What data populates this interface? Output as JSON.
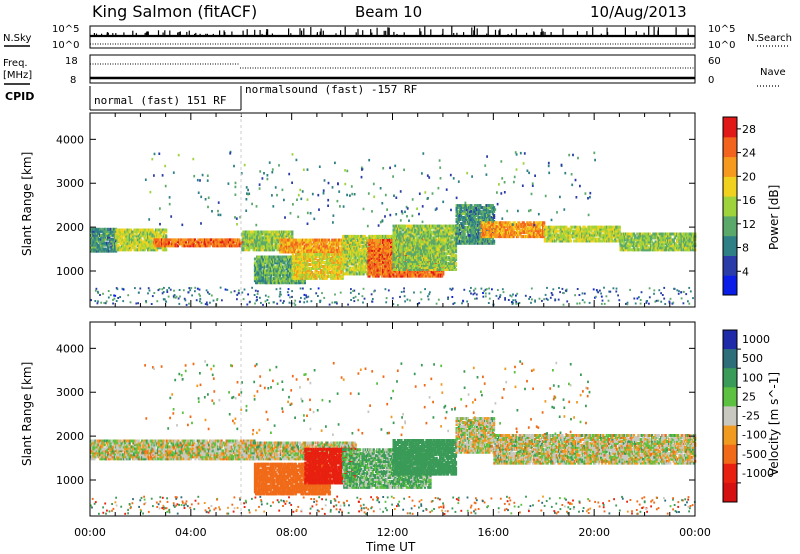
{
  "header": {
    "station": "King Salmon (fitACF)",
    "beam": "Beam 10",
    "date": "10/Aug/2013"
  },
  "top_panels": {
    "nsky_label": "N.Sky",
    "nsearch_label": "N.Search",
    "freq_label_line1": "Freq.",
    "freq_label_line2": "[MHz]",
    "nave_label": "Nave",
    "cpid_label": "CPID",
    "count_axis": {
      "top": "10^5",
      "bottom": "10^0"
    },
    "freq_axis": {
      "top": "18",
      "bottom": "8"
    },
    "nave_axis": {
      "top": "60",
      "bottom": "0"
    },
    "cpid_segments": [
      {
        "label": "normal (fast) 151 RF",
        "start_hour": 0,
        "end_hour": 6.0
      },
      {
        "label": "normalsound (fast) -157 RF",
        "start_hour": 6.0,
        "end_hour": 24
      }
    ]
  },
  "chart_data": [
    {
      "type": "heatmap",
      "title": "Power",
      "xlabel": "Time UT",
      "ylabel": "Slant Range [km]",
      "x_range_hours": [
        0,
        24
      ],
      "x_tick_labels": [
        "00:00",
        "04:00",
        "08:00",
        "12:00",
        "16:00",
        "20:00",
        "00:00"
      ],
      "y_range_km": [
        180,
        4600
      ],
      "y_ticks": [
        1000,
        2000,
        3000,
        4000
      ],
      "colorbar": {
        "label": "Power [dB]",
        "ticks": [
          4,
          8,
          12,
          16,
          20,
          24,
          28
        ],
        "range": [
          0,
          30
        ],
        "colors": [
          "#0a1ee8",
          "#2a3ca8",
          "#2e7f86",
          "#5aa86a",
          "#9ed33c",
          "#f0d21e",
          "#f59a1c",
          "#f2641e",
          "#e01818"
        ]
      },
      "regions": [
        {
          "t0": 0.0,
          "t1": 1.0,
          "r0": 1420,
          "r1": 1920,
          "value": 10
        },
        {
          "t0": 1.0,
          "t1": 3.0,
          "r0": 1450,
          "r1": 1920,
          "value": 16
        },
        {
          "t0": 2.5,
          "t1": 6.5,
          "r0": 1540,
          "r1": 1720,
          "value": 24
        },
        {
          "t0": 6.0,
          "t1": 8.0,
          "r0": 1450,
          "r1": 1900,
          "value": 14
        },
        {
          "t0": 7.5,
          "t1": 10.5,
          "r0": 1400,
          "r1": 1700,
          "value": 22
        },
        {
          "t0": 6.5,
          "t1": 8.5,
          "r0": 700,
          "r1": 1300,
          "value": 12
        },
        {
          "t0": 8.0,
          "t1": 10.0,
          "r0": 800,
          "r1": 1350,
          "value": 18
        },
        {
          "t0": 10.0,
          "t1": 12.0,
          "r0": 900,
          "r1": 1800,
          "value": 16
        },
        {
          "t0": 11.0,
          "t1": 14.0,
          "r0": 850,
          "r1": 1700,
          "value": 24
        },
        {
          "t0": 12.0,
          "t1": 14.5,
          "r0": 1000,
          "r1": 2000,
          "value": 14
        },
        {
          "t0": 14.5,
          "t1": 16.0,
          "r0": 1600,
          "r1": 2500,
          "value": 10
        },
        {
          "t0": 15.5,
          "t1": 18.0,
          "r0": 1750,
          "r1": 2100,
          "value": 22
        },
        {
          "t0": 18.0,
          "t1": 21.0,
          "r0": 1650,
          "r1": 2000,
          "value": 16
        },
        {
          "t0": 21.0,
          "t1": 24.0,
          "r0": 1450,
          "r1": 1850,
          "value": 14
        }
      ]
    },
    {
      "type": "heatmap",
      "title": "Velocity",
      "xlabel": "Time UT",
      "ylabel": "Slant Range [km]",
      "x_range_hours": [
        0,
        24
      ],
      "x_tick_labels": [
        "00:00",
        "04:00",
        "08:00",
        "12:00",
        "16:00",
        "20:00",
        "00:00"
      ],
      "y_range_km": [
        180,
        4600
      ],
      "y_ticks": [
        1000,
        2000,
        3000,
        4000
      ],
      "colorbar": {
        "label": "Velocity [m s^-1]",
        "ticks": [
          "1000",
          "500",
          "100",
          "25",
          "-25",
          "-100",
          "-500",
          "-1000"
        ],
        "colors": [
          "#1e2aa8",
          "#2e6e7a",
          "#3a9a58",
          "#5cc040",
          "#c8c8c0",
          "#f09a20",
          "#f06a18",
          "#e82010",
          "#d41010"
        ]
      },
      "regions": [
        {
          "t0": 0.0,
          "t1": 6.5,
          "r0": 1450,
          "r1": 1900,
          "value": 0
        },
        {
          "t0": 6.0,
          "t1": 10.5,
          "r0": 1450,
          "r1": 1850,
          "value": 0
        },
        {
          "t0": 6.5,
          "t1": 9.5,
          "r0": 650,
          "r1": 1350,
          "value": -150
        },
        {
          "t0": 8.5,
          "t1": 10.5,
          "r0": 900,
          "r1": 1700,
          "value": -400
        },
        {
          "t0": 10.0,
          "t1": 13.5,
          "r0": 800,
          "r1": 1700,
          "value": 60
        },
        {
          "t0": 12.0,
          "t1": 14.5,
          "r0": 1100,
          "r1": 1900,
          "value": 150
        },
        {
          "t0": 14.5,
          "t1": 16.0,
          "r0": 1600,
          "r1": 2400,
          "value": 0
        },
        {
          "t0": 16.0,
          "t1": 24.0,
          "r0": 1350,
          "r1": 2000,
          "value": 0
        }
      ]
    }
  ]
}
